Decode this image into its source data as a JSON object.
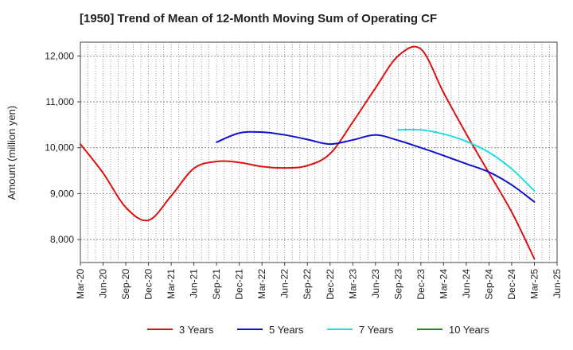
{
  "chart_data": {
    "type": "line",
    "title": "[1950]  Trend of Mean of 12-Month Moving Sum of Operating CF",
    "xlabel": "",
    "ylabel": "Amount (million yen)",
    "ylim": [
      7500,
      12300
    ],
    "yticks": [
      8000,
      9000,
      10000,
      11000,
      12000
    ],
    "ytick_labels": [
      "8,000",
      "9,000",
      "10,000",
      "11,000",
      "12,000"
    ],
    "categories": [
      "Mar-20",
      "Jun-20",
      "Sep-20",
      "Dec-20",
      "Mar-21",
      "Jun-21",
      "Sep-21",
      "Dec-21",
      "Mar-22",
      "Jun-22",
      "Sep-22",
      "Dec-22",
      "Mar-23",
      "Jun-23",
      "Sep-23",
      "Dec-23",
      "Mar-24",
      "Jun-24",
      "Sep-24",
      "Dec-24",
      "Mar-25",
      "Jun-25"
    ],
    "grid": true,
    "legend_position": "bottom",
    "series": [
      {
        "name": "3 Years",
        "color": "#dd1111",
        "x": [
          "Mar-20",
          "Jun-20",
          "Sep-20",
          "Dec-20",
          "Mar-21",
          "Jun-21",
          "Sep-21",
          "Dec-21",
          "Mar-22",
          "Jun-22",
          "Sep-22",
          "Dec-22",
          "Mar-23",
          "Jun-23",
          "Sep-23",
          "Dec-23",
          "Mar-24",
          "Jun-24",
          "Sep-24",
          "Dec-24",
          "Mar-25"
        ],
        "values": [
          10080,
          9450,
          8700,
          8420,
          8950,
          9550,
          9700,
          9680,
          9590,
          9560,
          9610,
          9870,
          10560,
          11300,
          12000,
          12150,
          11200,
          10300,
          9450,
          8600,
          7580
        ]
      },
      {
        "name": "5 Years",
        "color": "#1111cc",
        "x": [
          "Sep-21",
          "Dec-21",
          "Mar-22",
          "Jun-22",
          "Sep-22",
          "Dec-22",
          "Mar-23",
          "Jun-23",
          "Sep-23",
          "Dec-23",
          "Mar-24",
          "Jun-24",
          "Sep-24",
          "Dec-24",
          "Mar-25"
        ],
        "values": [
          10120,
          10320,
          10340,
          10280,
          10180,
          10080,
          10170,
          10280,
          10160,
          10000,
          9830,
          9650,
          9470,
          9190,
          8820
        ]
      },
      {
        "name": "7 Years",
        "color": "#22dddd",
        "x": [
          "Sep-23",
          "Dec-23",
          "Mar-24",
          "Jun-24",
          "Sep-24",
          "Dec-24",
          "Mar-25"
        ],
        "values": [
          10390,
          10390,
          10300,
          10140,
          9900,
          9540,
          9060
        ]
      },
      {
        "name": "10 Years",
        "color": "#228822",
        "x": [],
        "values": []
      }
    ]
  }
}
